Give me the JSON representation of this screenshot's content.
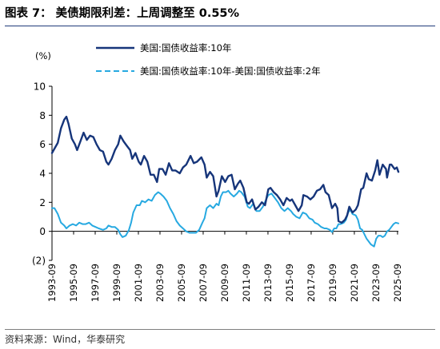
{
  "title": "图表 7：  美债期限利差：上周调整至 0.55%",
  "source": "资料来源：Wind，华泰研究",
  "chart_data": {
    "type": "line",
    "ylabel": "(%)",
    "ylim": [
      -2,
      10
    ],
    "yticks": [
      -2,
      0,
      2,
      4,
      6,
      8,
      10
    ],
    "ytick_labels": [
      "(2)",
      "0",
      "2",
      "4",
      "6",
      "8",
      "10"
    ],
    "xlim": [
      1993.67,
      2025.75
    ],
    "xticks": [
      1993.67,
      1995.67,
      1997.67,
      1999.67,
      2001.67,
      2003.67,
      2005.67,
      2007.67,
      2009.67,
      2011.67,
      2013.67,
      2015.67,
      2017.67,
      2019.67,
      2021.67,
      2023.67,
      2025.67
    ],
    "xtick_labels": [
      "1993-09",
      "1995-09",
      "1997-09",
      "1999-09",
      "2001-09",
      "2003-09",
      "2005-09",
      "2007-09",
      "2009-09",
      "2011-09",
      "2013-09",
      "2015-09",
      "2017-09",
      "2019-09",
      "2021-09",
      "2023-09",
      "2025-09"
    ],
    "grid": false,
    "legend_position": "top",
    "series": [
      {
        "name": "美国:国债收益率:10年",
        "color": "#16357a",
        "style": "solid",
        "points": [
          [
            1993.67,
            5.4
          ],
          [
            1993.9,
            5.7
          ],
          [
            1994.2,
            6.1
          ],
          [
            1994.5,
            7.1
          ],
          [
            1994.8,
            7.7
          ],
          [
            1995.0,
            7.9
          ],
          [
            1995.2,
            7.4
          ],
          [
            1995.5,
            6.4
          ],
          [
            1995.8,
            6.0
          ],
          [
            1996.0,
            5.6
          ],
          [
            1996.3,
            6.2
          ],
          [
            1996.6,
            6.8
          ],
          [
            1996.9,
            6.3
          ],
          [
            1997.2,
            6.6
          ],
          [
            1997.5,
            6.5
          ],
          [
            1997.8,
            6.0
          ],
          [
            1998.1,
            5.6
          ],
          [
            1998.4,
            5.5
          ],
          [
            1998.7,
            4.8
          ],
          [
            1998.9,
            4.6
          ],
          [
            1999.2,
            5.0
          ],
          [
            1999.5,
            5.6
          ],
          [
            1999.8,
            6.0
          ],
          [
            2000.0,
            6.6
          ],
          [
            2000.3,
            6.2
          ],
          [
            2000.6,
            5.9
          ],
          [
            2000.9,
            5.6
          ],
          [
            2001.1,
            5.0
          ],
          [
            2001.4,
            5.4
          ],
          [
            2001.7,
            4.8
          ],
          [
            2001.9,
            4.6
          ],
          [
            2002.2,
            5.2
          ],
          [
            2002.5,
            4.8
          ],
          [
            2002.8,
            3.9
          ],
          [
            2003.1,
            3.9
          ],
          [
            2003.4,
            3.4
          ],
          [
            2003.6,
            4.3
          ],
          [
            2003.9,
            4.3
          ],
          [
            2004.2,
            3.9
          ],
          [
            2004.5,
            4.7
          ],
          [
            2004.8,
            4.2
          ],
          [
            2005.1,
            4.2
          ],
          [
            2005.5,
            4.0
          ],
          [
            2005.8,
            4.4
          ],
          [
            2006.1,
            4.6
          ],
          [
            2006.5,
            5.2
          ],
          [
            2006.8,
            4.7
          ],
          [
            2007.1,
            4.8
          ],
          [
            2007.5,
            5.1
          ],
          [
            2007.8,
            4.6
          ],
          [
            2008.0,
            3.7
          ],
          [
            2008.3,
            4.1
          ],
          [
            2008.6,
            3.8
          ],
          [
            2008.9,
            2.4
          ],
          [
            2009.1,
            2.8
          ],
          [
            2009.4,
            3.8
          ],
          [
            2009.7,
            3.4
          ],
          [
            2010.0,
            3.8
          ],
          [
            2010.3,
            3.9
          ],
          [
            2010.6,
            2.9
          ],
          [
            2010.9,
            3.3
          ],
          [
            2011.1,
            3.5
          ],
          [
            2011.4,
            3.0
          ],
          [
            2011.7,
            2.0
          ],
          [
            2011.9,
            1.9
          ],
          [
            2012.2,
            2.2
          ],
          [
            2012.5,
            1.5
          ],
          [
            2012.8,
            1.7
          ],
          [
            2013.1,
            2.0
          ],
          [
            2013.4,
            1.8
          ],
          [
            2013.7,
            2.9
          ],
          [
            2013.9,
            3.0
          ],
          [
            2014.2,
            2.7
          ],
          [
            2014.5,
            2.5
          ],
          [
            2014.8,
            2.2
          ],
          [
            2015.1,
            1.8
          ],
          [
            2015.4,
            2.3
          ],
          [
            2015.7,
            2.1
          ],
          [
            2015.9,
            2.2
          ],
          [
            2016.2,
            1.8
          ],
          [
            2016.5,
            1.4
          ],
          [
            2016.8,
            1.8
          ],
          [
            2016.95,
            2.5
          ],
          [
            2017.3,
            2.4
          ],
          [
            2017.6,
            2.2
          ],
          [
            2017.9,
            2.4
          ],
          [
            2018.2,
            2.8
          ],
          [
            2018.5,
            2.9
          ],
          [
            2018.8,
            3.2
          ],
          [
            2019.0,
            2.7
          ],
          [
            2019.3,
            2.5
          ],
          [
            2019.6,
            1.6
          ],
          [
            2019.9,
            1.9
          ],
          [
            2020.1,
            1.6
          ],
          [
            2020.2,
            0.7
          ],
          [
            2020.5,
            0.6
          ],
          [
            2020.8,
            0.8
          ],
          [
            2021.0,
            1.1
          ],
          [
            2021.2,
            1.7
          ],
          [
            2021.5,
            1.3
          ],
          [
            2021.8,
            1.5
          ],
          [
            2022.0,
            1.8
          ],
          [
            2022.3,
            2.9
          ],
          [
            2022.5,
            3.0
          ],
          [
            2022.8,
            4.0
          ],
          [
            2023.0,
            3.6
          ],
          [
            2023.3,
            3.5
          ],
          [
            2023.6,
            4.2
          ],
          [
            2023.8,
            4.9
          ],
          [
            2024.0,
            3.9
          ],
          [
            2024.3,
            4.6
          ],
          [
            2024.6,
            4.3
          ],
          [
            2024.7,
            3.7
          ],
          [
            2024.95,
            4.6
          ],
          [
            2025.1,
            4.6
          ],
          [
            2025.4,
            4.3
          ],
          [
            2025.6,
            4.4
          ],
          [
            2025.75,
            4.1
          ]
        ]
      },
      {
        "name": "美国:国债收益率:10年-美国:国债收益率:2年",
        "color": "#27a9e1",
        "style": "solid",
        "points": [
          [
            1993.67,
            1.6
          ],
          [
            1993.9,
            1.6
          ],
          [
            1994.2,
            1.2
          ],
          [
            1994.5,
            0.6
          ],
          [
            1994.8,
            0.4
          ],
          [
            1995.0,
            0.2
          ],
          [
            1995.3,
            0.4
          ],
          [
            1995.6,
            0.5
          ],
          [
            1995.9,
            0.4
          ],
          [
            1996.2,
            0.6
          ],
          [
            1996.5,
            0.5
          ],
          [
            1996.8,
            0.5
          ],
          [
            1997.1,
            0.6
          ],
          [
            1997.4,
            0.4
          ],
          [
            1997.7,
            0.3
          ],
          [
            1998.0,
            0.2
          ],
          [
            1998.4,
            0.1
          ],
          [
            1998.7,
            0.2
          ],
          [
            1998.9,
            0.4
          ],
          [
            1999.2,
            0.3
          ],
          [
            1999.5,
            0.3
          ],
          [
            1999.8,
            0.1
          ],
          [
            2000.0,
            -0.2
          ],
          [
            2000.2,
            -0.4
          ],
          [
            2000.5,
            -0.3
          ],
          [
            2000.8,
            0.1
          ],
          [
            2001.0,
            0.6
          ],
          [
            2001.2,
            1.3
          ],
          [
            2001.5,
            1.8
          ],
          [
            2001.8,
            1.8
          ],
          [
            2002.0,
            2.1
          ],
          [
            2002.3,
            2.0
          ],
          [
            2002.6,
            2.2
          ],
          [
            2002.9,
            2.1
          ],
          [
            2003.2,
            2.5
          ],
          [
            2003.5,
            2.7
          ],
          [
            2003.7,
            2.6
          ],
          [
            2004.0,
            2.4
          ],
          [
            2004.3,
            2.1
          ],
          [
            2004.6,
            1.6
          ],
          [
            2004.9,
            1.2
          ],
          [
            2005.2,
            0.7
          ],
          [
            2005.5,
            0.4
          ],
          [
            2005.8,
            0.2
          ],
          [
            2006.1,
            0.0
          ],
          [
            2006.4,
            -0.1
          ],
          [
            2006.7,
            -0.1
          ],
          [
            2007.0,
            -0.1
          ],
          [
            2007.3,
            0.1
          ],
          [
            2007.6,
            0.6
          ],
          [
            2007.8,
            0.9
          ],
          [
            2008.0,
            1.6
          ],
          [
            2008.3,
            1.8
          ],
          [
            2008.6,
            1.6
          ],
          [
            2008.9,
            1.9
          ],
          [
            2009.1,
            1.8
          ],
          [
            2009.3,
            2.4
          ],
          [
            2009.5,
            2.7
          ],
          [
            2009.8,
            2.7
          ],
          [
            2010.0,
            2.8
          ],
          [
            2010.2,
            2.6
          ],
          [
            2010.5,
            2.4
          ],
          [
            2010.8,
            2.6
          ],
          [
            2011.0,
            2.8
          ],
          [
            2011.2,
            2.7
          ],
          [
            2011.5,
            2.4
          ],
          [
            2011.8,
            1.7
          ],
          [
            2012.0,
            1.6
          ],
          [
            2012.3,
            1.9
          ],
          [
            2012.6,
            1.4
          ],
          [
            2012.9,
            1.4
          ],
          [
            2013.2,
            1.7
          ],
          [
            2013.5,
            2.2
          ],
          [
            2013.7,
            2.5
          ],
          [
            2014.0,
            2.6
          ],
          [
            2014.3,
            2.3
          ],
          [
            2014.6,
            2.0
          ],
          [
            2014.9,
            1.6
          ],
          [
            2015.2,
            1.4
          ],
          [
            2015.5,
            1.6
          ],
          [
            2015.8,
            1.4
          ],
          [
            2016.0,
            1.2
          ],
          [
            2016.3,
            1.0
          ],
          [
            2016.6,
            0.9
          ],
          [
            2016.9,
            1.3
          ],
          [
            2017.2,
            1.2
          ],
          [
            2017.5,
            0.9
          ],
          [
            2017.8,
            0.8
          ],
          [
            2018.0,
            0.6
          ],
          [
            2018.3,
            0.5
          ],
          [
            2018.6,
            0.3
          ],
          [
            2018.9,
            0.2
          ],
          [
            2019.1,
            0.2
          ],
          [
            2019.4,
            0.1
          ],
          [
            2019.6,
            -0.05
          ],
          [
            2019.8,
            0.2
          ],
          [
            2020.0,
            0.2
          ],
          [
            2020.2,
            0.5
          ],
          [
            2020.4,
            0.5
          ],
          [
            2020.7,
            0.6
          ],
          [
            2020.9,
            0.8
          ],
          [
            2021.1,
            1.3
          ],
          [
            2021.3,
            1.5
          ],
          [
            2021.5,
            1.2
          ],
          [
            2021.8,
            1.1
          ],
          [
            2022.0,
            0.8
          ],
          [
            2022.2,
            0.2
          ],
          [
            2022.4,
            0.1
          ],
          [
            2022.6,
            -0.2
          ],
          [
            2022.8,
            -0.5
          ],
          [
            2023.0,
            -0.7
          ],
          [
            2023.2,
            -0.9
          ],
          [
            2023.4,
            -1.0
          ],
          [
            2023.5,
            -1.05
          ],
          [
            2023.7,
            -0.5
          ],
          [
            2023.9,
            -0.3
          ],
          [
            2024.1,
            -0.3
          ],
          [
            2024.3,
            -0.4
          ],
          [
            2024.5,
            -0.3
          ],
          [
            2024.7,
            0.0
          ],
          [
            2024.9,
            0.1
          ],
          [
            2025.1,
            0.3
          ],
          [
            2025.3,
            0.5
          ],
          [
            2025.5,
            0.6
          ],
          [
            2025.75,
            0.55
          ]
        ]
      }
    ]
  }
}
